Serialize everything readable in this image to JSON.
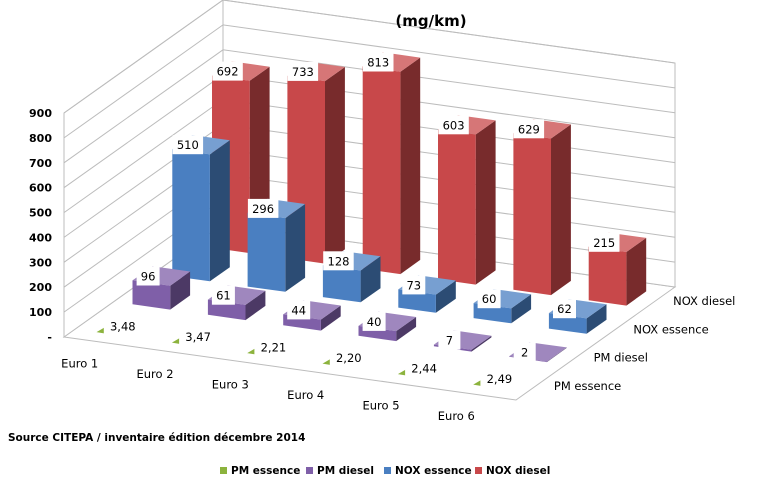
{
  "chart_data": {
    "type": "bar",
    "title": "(mg/km)",
    "source": "Source CITEPA / inventaire édition décembre 2014",
    "categories": [
      "Euro 1",
      "Euro 2",
      "Euro 3",
      "Euro 4",
      "Euro 5",
      "Euro 6"
    ],
    "y_ticks": [
      "-",
      "100",
      "200",
      "300",
      "400",
      "500",
      "600",
      "700",
      "800",
      "900"
    ],
    "ylim": [
      0,
      900
    ],
    "grid": true,
    "legend_position": "bottom",
    "series": [
      {
        "name": "PM essence",
        "color": "#8cb33d",
        "values": [
          3.48,
          3.47,
          2.21,
          2.2,
          2.44,
          2.49
        ],
        "labels": [
          "3,48",
          "3,47",
          "2,21",
          "2,20",
          "2,44",
          "2,49"
        ]
      },
      {
        "name": "PM diesel",
        "color": "#7f5fa8",
        "values": [
          96,
          61,
          44,
          40,
          7,
          2
        ],
        "labels": [
          "96",
          "61",
          "44",
          "40",
          "7",
          "2"
        ]
      },
      {
        "name": "NOX essence",
        "color": "#4a7fc1",
        "values": [
          510,
          296,
          128,
          73,
          60,
          62
        ],
        "labels": [
          "510",
          "296",
          "128",
          "73",
          "60",
          "62"
        ]
      },
      {
        "name": "NOX diesel",
        "color": "#c8484a",
        "values": [
          692,
          733,
          813,
          603,
          629,
          215
        ],
        "labels": [
          "692",
          "733",
          "813",
          "603",
          "629",
          "215"
        ]
      }
    ]
  }
}
